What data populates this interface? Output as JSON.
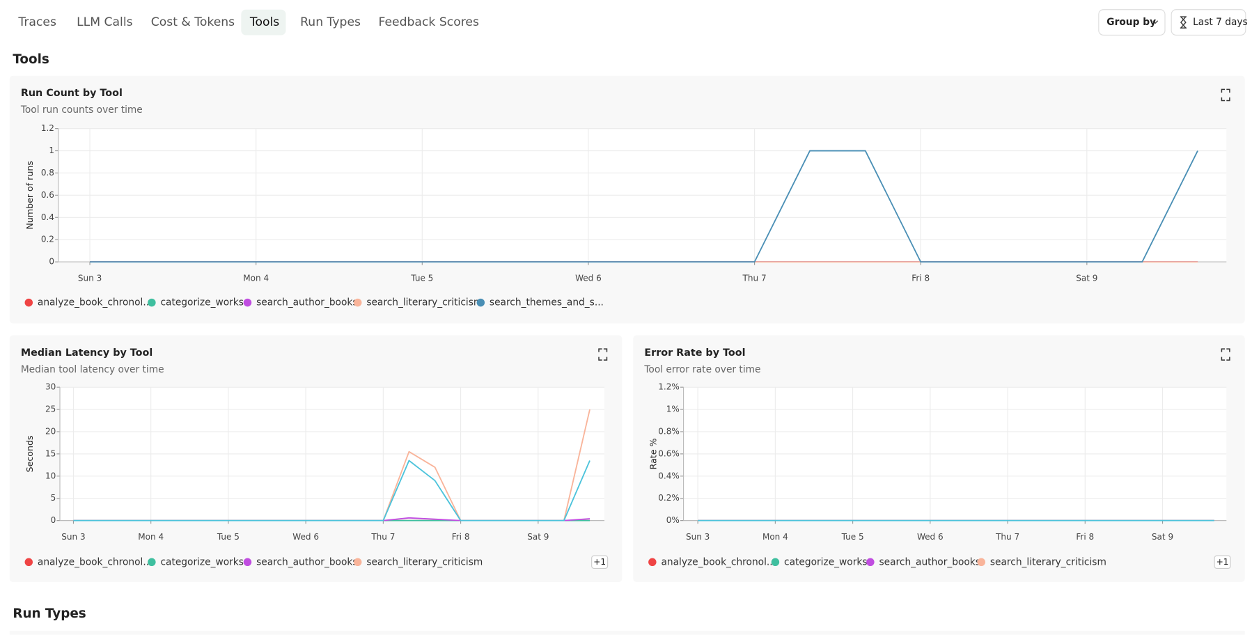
{
  "tabs": [
    "Traces",
    "LLM Calls",
    "Cost & Tokens",
    "Tools",
    "Run Types",
    "Feedback Scores"
  ],
  "buttons": [
    "Group by",
    "Last 7 days"
  ],
  "section_title": "Tools",
  "next_section_title": "Run Types",
  "chart_data": [
    {
      "type": "line",
      "title": "Run Count by Tool",
      "subtitle": "Tool run counts over time",
      "y_label": "Number of runs",
      "x": [
        3,
        4,
        5,
        6,
        7,
        7.333,
        7.667,
        8,
        9,
        9.333,
        9.667
      ],
      "xlim": [
        2.81,
        9.84
      ],
      "xticks": [
        {
          "value": 3,
          "label": "Sun 3"
        },
        {
          "value": 4,
          "label": "Mon 4"
        },
        {
          "value": 5,
          "label": "Tue 5"
        },
        {
          "value": 6,
          "label": "Wed 6"
        },
        {
          "value": 7,
          "label": "Thu 7"
        },
        {
          "value": 8,
          "label": "Fri 8"
        },
        {
          "value": 9,
          "label": "Sat 9"
        }
      ],
      "ylim": [
        0,
        1.2
      ],
      "yticks": [
        0,
        0.2,
        0.4,
        0.6,
        0.8,
        1,
        1.2
      ],
      "grid": true,
      "series": [
        {
          "name": "analyze_book_chronol...",
          "color": "#ef4444",
          "values": [
            0,
            0,
            0,
            0,
            0,
            0,
            0,
            0,
            0,
            0,
            0
          ]
        },
        {
          "name": "categorize_works",
          "color": "#3fbf9f",
          "values": [
            0,
            0,
            0,
            0,
            0,
            0,
            0,
            0,
            0,
            0,
            0
          ]
        },
        {
          "name": "search_author_books",
          "color": "#c04de0",
          "values": [
            0,
            0,
            0,
            0,
            0,
            0,
            0,
            0,
            0,
            0,
            0
          ]
        },
        {
          "name": "search_literary_criticism",
          "color": "#f9b49a",
          "values": [
            0,
            0,
            0,
            0,
            0,
            0,
            0,
            0,
            0,
            0,
            0
          ]
        },
        {
          "name": "search_themes_and_s...",
          "color": "#4a8fb5",
          "values": [
            0,
            0,
            0,
            0,
            0,
            1,
            1,
            0,
            0,
            0,
            1
          ]
        }
      ]
    },
    {
      "type": "line",
      "title": "Median Latency by Tool",
      "subtitle": "Median tool latency over time",
      "y_label": "Seconds",
      "x": [
        3,
        4,
        5,
        6,
        7,
        7.333,
        7.667,
        8,
        9,
        9.333,
        9.667
      ],
      "xlim": [
        2.825,
        9.856
      ],
      "xticks": [
        {
          "value": 3,
          "label": "Sun 3"
        },
        {
          "value": 4,
          "label": "Mon 4"
        },
        {
          "value": 5,
          "label": "Tue 5"
        },
        {
          "value": 6,
          "label": "Wed 6"
        },
        {
          "value": 7,
          "label": "Thu 7"
        },
        {
          "value": 8,
          "label": "Fri 8"
        },
        {
          "value": 9,
          "label": "Sat 9"
        }
      ],
      "ylim": [
        0,
        30
      ],
      "yticks": [
        0,
        5,
        10,
        15,
        20,
        25,
        30
      ],
      "grid": true,
      "legend_overflow": "+1",
      "series": [
        {
          "name": "analyze_book_chronol...",
          "color": "#ef4444",
          "values": [
            0,
            0,
            0,
            0,
            0,
            0,
            0,
            0,
            0,
            0,
            0
          ]
        },
        {
          "name": "categorize_works",
          "color": "#3fbf9f",
          "values": [
            0,
            0,
            0,
            0,
            0,
            0,
            0,
            0,
            0,
            0,
            0
          ]
        },
        {
          "name": "search_author_books",
          "color": "#c04de0",
          "values": [
            0,
            0,
            0,
            0,
            0,
            0.6,
            0.3,
            0,
            0,
            0,
            0.4
          ]
        },
        {
          "name": "search_literary_criticism",
          "color": "#f9b49a",
          "values": [
            0,
            0,
            0,
            0,
            0,
            15.5,
            12,
            0,
            0,
            0,
            25
          ]
        },
        {
          "color": "#4cc3db",
          "values": [
            0,
            0,
            0,
            0,
            0,
            13.5,
            9,
            0,
            0,
            0,
            13.5
          ]
        }
      ]
    },
    {
      "type": "line",
      "title": "Error Rate by Tool",
      "subtitle": "Tool error rate over time",
      "y_label": "Rate %",
      "x": [
        3,
        4,
        5,
        6,
        7,
        7.333,
        7.667,
        8,
        9,
        9.333,
        9.667
      ],
      "xlim": [
        2.815,
        9.825
      ],
      "xticks": [
        {
          "value": 3,
          "label": "Sun 3"
        },
        {
          "value": 4,
          "label": "Mon 4"
        },
        {
          "value": 5,
          "label": "Tue 5"
        },
        {
          "value": 6,
          "label": "Wed 6"
        },
        {
          "value": 7,
          "label": "Thu 7"
        },
        {
          "value": 8,
          "label": "Fri 8"
        },
        {
          "value": 9,
          "label": "Sat 9"
        }
      ],
      "ylim": [
        0,
        1.2
      ],
      "yticks": [
        {
          "value": 0,
          "label": "0%"
        },
        {
          "value": 0.2,
          "label": "0.2%"
        },
        {
          "value": 0.4,
          "label": "0.4%"
        },
        {
          "value": 0.6,
          "label": "0.6%"
        },
        {
          "value": 0.8,
          "label": "0.8%"
        },
        {
          "value": 1,
          "label": "1%"
        },
        {
          "value": 1.2,
          "label": "1.2%"
        }
      ],
      "grid": true,
      "legend_overflow": "+1",
      "series": [
        {
          "name": "analyze_book_chronol...",
          "color": "#ef4444",
          "values": [
            0,
            0,
            0,
            0,
            0,
            0,
            0,
            0,
            0,
            0,
            0
          ]
        },
        {
          "name": "categorize_works",
          "color": "#3fbf9f",
          "values": [
            0,
            0,
            0,
            0,
            0,
            0,
            0,
            0,
            0,
            0,
            0
          ]
        },
        {
          "name": "search_author_books",
          "color": "#c04de0",
          "values": [
            0,
            0,
            0,
            0,
            0,
            0,
            0,
            0,
            0,
            0,
            0
          ]
        },
        {
          "name": "search_literary_criticism",
          "color": "#f9b49a",
          "values": [
            0,
            0,
            0,
            0,
            0,
            0,
            0,
            0,
            0,
            0,
            0
          ]
        },
        {
          "color": "#4cc3db",
          "values": [
            0,
            0,
            0,
            0,
            0,
            0,
            0,
            0,
            0,
            0,
            0
          ]
        }
      ]
    }
  ]
}
